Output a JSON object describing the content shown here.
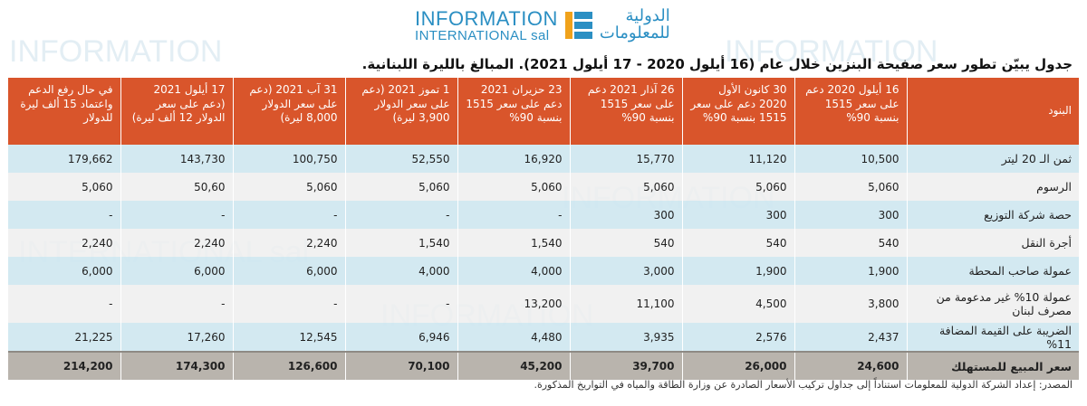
{
  "logo": {
    "en_line1": "INFORMATION",
    "en_line2": "INTERNATIONAL sal",
    "ar_line1": "الدولية",
    "ar_line2": "للمعلومات",
    "accent": "#2b8fc3",
    "mark_color": "#f0a21b"
  },
  "title": "جدول يبيّن تطور سعر صفيحة البنزين خلال عام (16 أيلول 2020 - 17 أيلول 2021). المبالغ بالليرة اللبنانية.",
  "table": {
    "header_color": "#d9552b",
    "columns": [
      "البنود",
      "16 أيلول 2020 دعم على سعر 1515 بنسبة 90%",
      "30 كانون الأول 2020 دعم على سعر 1515 بنسبة 90%",
      "26 آذار 2021 دعم على سعر 1515 بنسبة 90%",
      "23 حزيران 2021 دعم على سعر 1515 بنسبة 90%",
      "1 تموز 2021 (دعم على سعر الدولار 3,900 ليرة)",
      "31 آب 2021 (دعم على سعر الدولار 8,000 ليرة)",
      "17 أيلول 2021 (دعم على سعر الدولار 12 ألف ليرة)",
      "في حال رفع الدعم واعتماد 15 ألف ليرة للدولار"
    ],
    "rows": [
      [
        "ثمن الـ 20 ليتر",
        "10,500",
        "11,120",
        "15,770",
        "16,920",
        "52,550",
        "100,750",
        "143,730",
        "179,662"
      ],
      [
        "الرسوم",
        "5,060",
        "5,060",
        "5,060",
        "5,060",
        "5,060",
        "5,060",
        "50,60",
        "5,060"
      ],
      [
        "حصة شركة التوزيع",
        "300",
        "300",
        "300",
        "-",
        "-",
        "-",
        "-",
        "-"
      ],
      [
        "أجرة النقل",
        "540",
        "540",
        "540",
        "1,540",
        "1,540",
        "2,240",
        "2,240",
        "2,240"
      ],
      [
        "عمولة صاحب المحطة",
        "1,900",
        "1,900",
        "3,000",
        "4,000",
        "4,000",
        "6,000",
        "6,000",
        "6,000"
      ],
      [
        "عمولة 10% غير مدعومة من مصرف لبنان",
        "3,800",
        "4,500",
        "11,100",
        "13,200",
        "-",
        "-",
        "-",
        "-"
      ],
      [
        "الضريبة على القيمة المضافة 11%",
        "2,437",
        "2,576",
        "3,935",
        "4,480",
        "6,946",
        "12,545",
        "17,260",
        "21,225"
      ]
    ],
    "total": [
      "سعر المبيع للمستهلك",
      "24,600",
      "26,000",
      "39,700",
      "45,200",
      "70,100",
      "126,600",
      "174,300",
      "214,200"
    ]
  },
  "source": "المصدر: إعداد الشركة الدولية للمعلومات استناداً إلى جداول تركيب الأسعار الصادرة عن وزارة الطاقة والمياه في التواريخ المذكورة."
}
